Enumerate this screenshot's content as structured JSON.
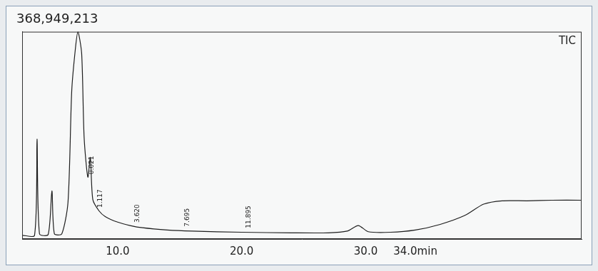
{
  "chart_data": {
    "type": "line",
    "title": "368,949,213",
    "x": [
      2.3,
      3.3,
      3.5,
      3.7,
      4.4,
      4.7,
      4.9,
      5.5,
      6.0,
      6.3,
      6.6,
      6.8,
      7.1,
      7.3,
      7.6,
      7.8,
      8.0,
      8.5,
      9.0,
      10.0,
      11.0,
      12.0,
      14.0,
      16.0,
      20.0,
      24.0,
      27.0,
      28.5,
      29.4,
      30.2,
      32.0,
      34.0,
      36.0,
      38.0,
      39.5,
      41.0,
      43.0,
      45.0,
      47.4
    ],
    "series": [
      {
        "name": "TIC",
        "color": "#1e1e1e",
        "values": [
          6600000,
          6600000,
          177900000,
          9200000,
          7900000,
          85600000,
          9200000,
          9200000,
          65900000,
          264000000,
          340000000,
          368949213,
          330000000,
          180000000,
          110000000,
          145000000,
          70000000,
          50000000,
          40000000,
          30000000,
          24000000,
          20000000,
          16000000,
          14000000,
          12000000,
          11000000,
          11000000,
          14000000,
          24000000,
          13000000,
          12000000,
          16000000,
          26000000,
          42000000,
          62000000,
          68000000,
          68000000,
          69000000,
          69000000
        ]
      }
    ],
    "xlim": [
      2.3,
      47.4
    ],
    "xticks": [
      {
        "value": 10,
        "label": "10.0"
      },
      {
        "value": 20,
        "label": "20.0"
      },
      {
        "value": 30,
        "label": "30.0"
      },
      {
        "value": 34,
        "label": "34.0min"
      }
    ],
    "ylim": [
      0,
      368949213
    ],
    "tick_labels": "x",
    "grid": false,
    "annotations": [
      {
        "text": "0.021",
        "x": 7.9
      },
      {
        "text": "1.117",
        "x": 8.6
      },
      {
        "text": "3.620",
        "x": 11.6
      },
      {
        "text": "7.695",
        "x": 15.6
      },
      {
        "text": "11.895",
        "x": 20.6
      }
    ]
  }
}
